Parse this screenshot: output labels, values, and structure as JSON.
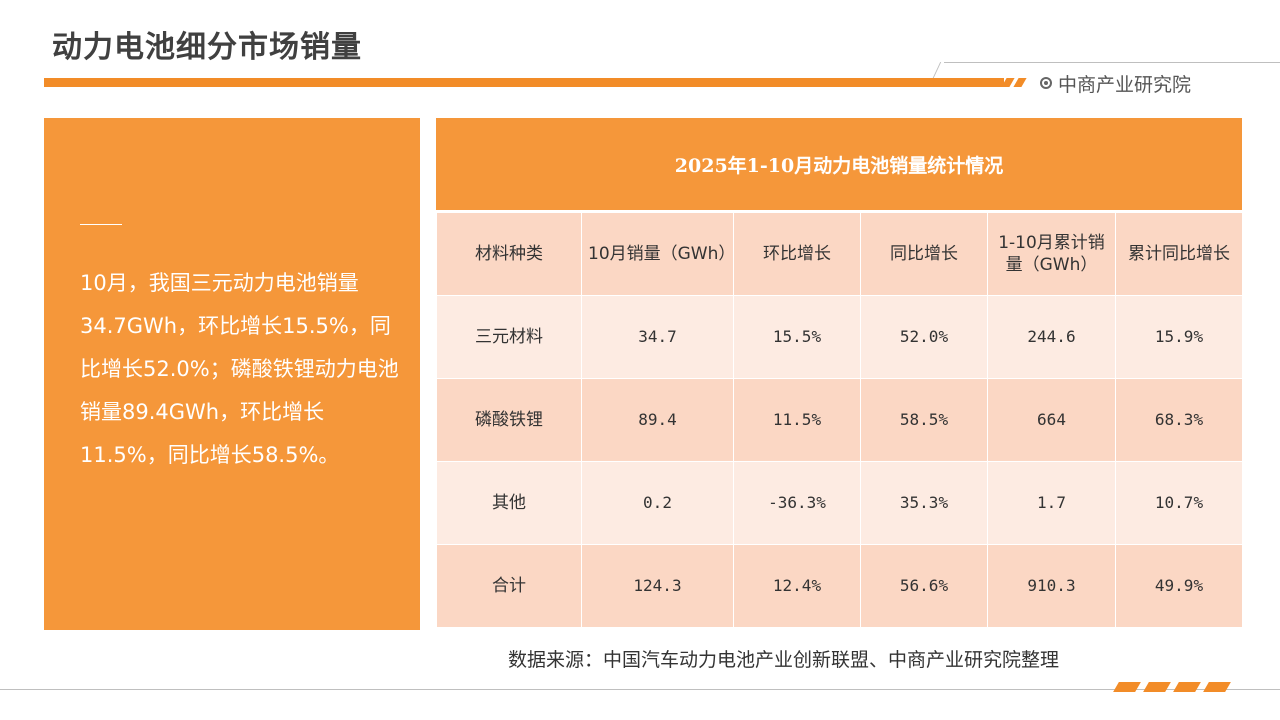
{
  "header": {
    "title": "动力电池细分市场销量",
    "brand": "中商产业研究院"
  },
  "summary": {
    "text": "10月，我国三元动力电池销量34.7GWh，环比增长15.5%，同比增长52.0%；磷酸铁锂动力电池销量89.4GWh，环比增长11.5%，同比增长58.5%。"
  },
  "table": {
    "title": "2025年1-10月动力电池销量统计情况",
    "headers": [
      "材料种类",
      "10月销量（GWh）",
      "环比增长",
      "同比增长",
      "1-10月累计销量（GWh）",
      "累计同比增长"
    ],
    "rows": [
      [
        "三元材料",
        "34.7",
        "15.5%",
        "52.0%",
        "244.6",
        "15.9%"
      ],
      [
        "磷酸铁锂",
        "89.4",
        "11.5%",
        "58.5%",
        "664",
        "68.3%"
      ],
      [
        "其他",
        "0.2",
        "-36.3%",
        "35.3%",
        "1.7",
        "10.7%"
      ],
      [
        "合计",
        "124.3",
        "12.4%",
        "56.6%",
        "910.3",
        "49.9%"
      ]
    ]
  },
  "footer": {
    "source": "数据来源：中国汽车动力电池产业创新联盟、中商产业研究院整理"
  },
  "colors": {
    "accent": "#f28c28",
    "panel": "#f5973a",
    "row_light": "#fdebe2",
    "row_dark": "#fbd7c4"
  }
}
